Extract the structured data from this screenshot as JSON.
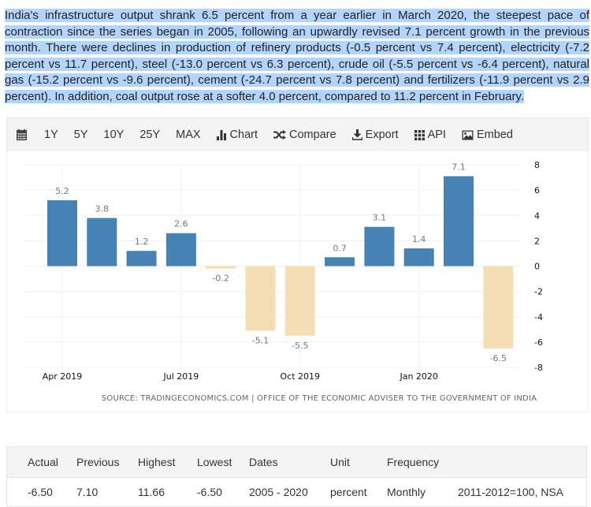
{
  "summary": {
    "text": "India's infrastructure output shrank 6.5 percent from a year earlier in March 2020, the steepest pace of contraction since the series began in 2005, following an upwardly revised 7.1 percent growth in the previous month. There were declines in production of refinery products (-0.5 percent vs 7.4 percent), electricity (-7.2 percent vs 11.7 percent), steel (-13.0 percent vs 6.3 percent), crude oil (-5.5 percent vs -6.4 percent), natural gas (-15.2 percent vs -9.6 percent), cement (-24.7 percent vs 7.8 percent) and fertilizers (-11.9 percent vs 2.9 percent). In addition, coal output rose at a softer 4.0 percent, compared to 11.2 percent in February."
  },
  "toolbar": {
    "calendar_icon": "calendar-icon",
    "ranges": [
      "1Y",
      "5Y",
      "10Y",
      "25Y",
      "MAX"
    ],
    "chart_label": "Chart",
    "chart_icon": "bar-chart-icon",
    "compare_label": "Compare",
    "compare_icon": "shuffle-icon",
    "export_label": "Export",
    "export_icon": "download-icon",
    "api_label": "API",
    "api_icon": "grid-icon",
    "embed_label": "Embed",
    "embed_icon": "image-icon"
  },
  "chart_data": {
    "type": "bar",
    "title": "",
    "xlabel": "",
    "ylabel": "",
    "categories": [
      "Apr 2019",
      "May 2019",
      "Jun 2019",
      "Jul 2019",
      "Aug 2019",
      "Sep 2019",
      "Oct 2019",
      "Nov 2019",
      "Dec 2019",
      "Jan 2020",
      "Feb 2020",
      "Mar 2020"
    ],
    "values": [
      5.2,
      3.8,
      1.2,
      2.6,
      -0.2,
      -5.1,
      -5.5,
      0.7,
      3.1,
      1.4,
      7.1,
      -6.5
    ],
    "data_labels": [
      "5.2",
      "3.8",
      "1.2",
      "2.6",
      "-0.2",
      "-5.1",
      "-5.5",
      "0.7",
      "3.1",
      "1.4",
      "7.1",
      "-6.5"
    ],
    "x_tick_labels": [
      {
        "label": "Apr 2019",
        "index": 0
      },
      {
        "label": "Jul 2019",
        "index": 3
      },
      {
        "label": "Oct 2019",
        "index": 6
      },
      {
        "label": "Jan 2020",
        "index": 9
      }
    ],
    "y_ticks": [
      8,
      6,
      4,
      2,
      0,
      -2,
      -4,
      -6,
      -8
    ],
    "ylim": [
      -8,
      8
    ],
    "y_axis_side": "right",
    "grid": true,
    "colors": {
      "positive": "#4682b4",
      "negative": "#f5deb3"
    },
    "source": "SOURCE: TRADINGECONOMICS.COM | OFFICE OF THE ECONOMIC ADVISER TO THE GOVERNMENT OF INDIA"
  },
  "stats_table": {
    "headers": [
      "Actual",
      "Previous",
      "Highest",
      "Lowest",
      "Dates",
      "Unit",
      "Frequency",
      ""
    ],
    "row": [
      "-6.50",
      "7.10",
      "11.66",
      "-6.50",
      "2005 - 2020",
      "percent",
      "Monthly",
      "2011-2012=100, NSA"
    ]
  }
}
